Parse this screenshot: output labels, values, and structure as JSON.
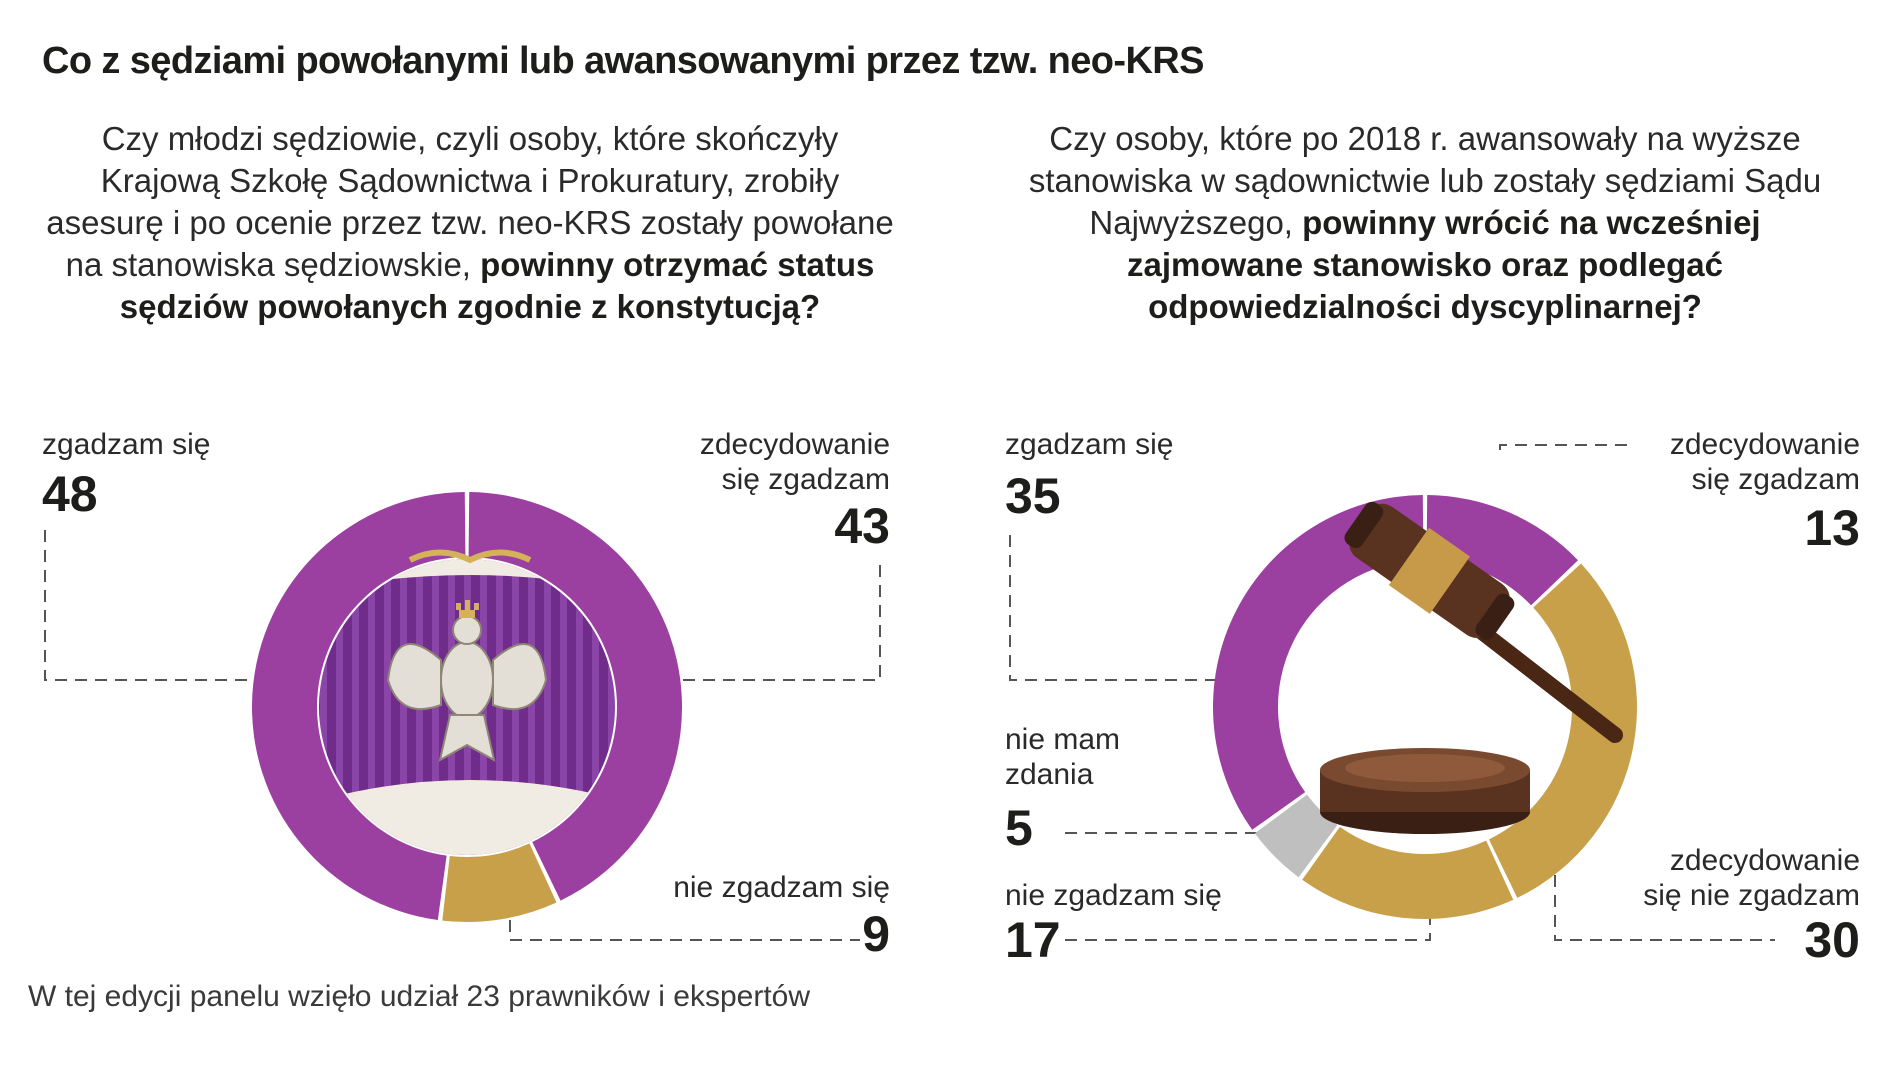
{
  "title": "Co z sędziami powołanymi lub awansowanymi przez tzw. neo-KRS",
  "footnote": "W tej edycji panelu wzięło udział 23 prawników i ekspertów",
  "colors": {
    "purple": "#9b3fa0",
    "gold": "#c9a04a",
    "gray": "#bfbfbf"
  },
  "chart_data": [
    {
      "type": "pie",
      "question_plain": "Czy młodzi sędziowie, czyli osoby, które skończyły Krajową Szkołę Sądownictwa i Prokuratury, zrobiły asesurę i po ocenie przez tzw. neo-KRS zostały powołane na stanowiska sędziowskie, ",
      "question_bold": "powinny otrzymać status sędziów powołanych zgodnie z konstytucją?",
      "slices": [
        {
          "label": "zdecydowanie się zgadzam",
          "value": 43,
          "color": "#9b3fa0"
        },
        {
          "label": "nie zgadzam się",
          "value": 9,
          "color": "#c9a04a"
        },
        {
          "label": "zgadzam się",
          "value": 48,
          "color": "#9b3fa0"
        }
      ],
      "icon": "eagle-emblem-icon"
    },
    {
      "type": "pie",
      "question_plain": "Czy osoby, które po 2018 r. awansowały na wyższe stanowiska w sądownictwie lub zostały sędziami Sądu Najwyższego, ",
      "question_bold": "powinny wrócić na wcześniej zajmowane stanowisko oraz podlegać odpowiedzialności dyscyplinarnej?",
      "slices": [
        {
          "label": "zdecydowanie się zgadzam",
          "value": 13,
          "color": "#9b3fa0"
        },
        {
          "label": "zdecydowanie się nie zgadzam",
          "value": 30,
          "color": "#c9a04a"
        },
        {
          "label": "nie zgadzam się",
          "value": 17,
          "color": "#c9a04a"
        },
        {
          "label": "nie mam zdania",
          "value": 5,
          "color": "#bfbfbf"
        },
        {
          "label": "zgadzam się",
          "value": 35,
          "color": "#9b3fa0"
        }
      ],
      "icon": "gavel-icon"
    }
  ],
  "labels": {
    "c1_zgadzam_l1": "zgadzam się",
    "c1_zdecydowanie_l1": "zdecydowanie",
    "c1_zdecydowanie_l2": "się zgadzam",
    "c1_nie_zgadzam": "nie zgadzam się",
    "c2_zgadzam_l1": "zgadzam się",
    "c2_zdecydowanie_l1": "zdecydowanie",
    "c2_zdecydowanie_l2": "się zgadzam",
    "c2_nie_mam_l1": "nie mam",
    "c2_nie_mam_l2": "zdania",
    "c2_nie_zgadzam": "nie zgadzam się",
    "c2_zdec_nie_l1": "zdecydowanie",
    "c2_zdec_nie_l2": "się nie zgadzam"
  }
}
